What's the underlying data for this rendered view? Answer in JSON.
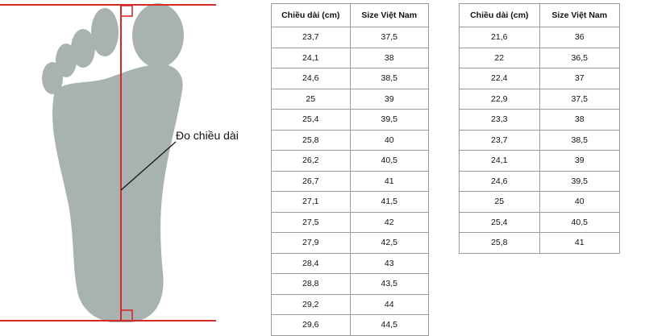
{
  "figure": {
    "measure_label": "Đo chiều dài"
  },
  "colors": {
    "foot": "#a8b2b0",
    "measure_line": "#d42a2a",
    "table_border": "#9a9a9a"
  },
  "table_left": {
    "headers": [
      "Chiều dài (cm)",
      "Size Việt Nam"
    ],
    "rows": [
      [
        "23,7",
        "37,5"
      ],
      [
        "24,1",
        "38"
      ],
      [
        "24,6",
        "38,5"
      ],
      [
        "25",
        "39"
      ],
      [
        "25,4",
        "39,5"
      ],
      [
        "25,8",
        "40"
      ],
      [
        "26,2",
        "40,5"
      ],
      [
        "26,7",
        "41"
      ],
      [
        "27,1",
        "41,5"
      ],
      [
        "27,5",
        "42"
      ],
      [
        "27,9",
        "42,5"
      ],
      [
        "28,4",
        "43"
      ],
      [
        "28,8",
        "43,5"
      ],
      [
        "29,2",
        "44"
      ],
      [
        "29,6",
        "44,5"
      ]
    ]
  },
  "table_right": {
    "headers": [
      "Chiều dài (cm)",
      "Size Việt Nam"
    ],
    "rows": [
      [
        "21,6",
        "36"
      ],
      [
        "22",
        "36,5"
      ],
      [
        "22,4",
        "37"
      ],
      [
        "22,9",
        "37,5"
      ],
      [
        "23,3",
        "38"
      ],
      [
        "23,7",
        "38,5"
      ],
      [
        "24,1",
        "39"
      ],
      [
        "24,6",
        "39,5"
      ],
      [
        "25",
        "40"
      ],
      [
        "25,4",
        "40,5"
      ],
      [
        "25,8",
        "41"
      ]
    ]
  }
}
